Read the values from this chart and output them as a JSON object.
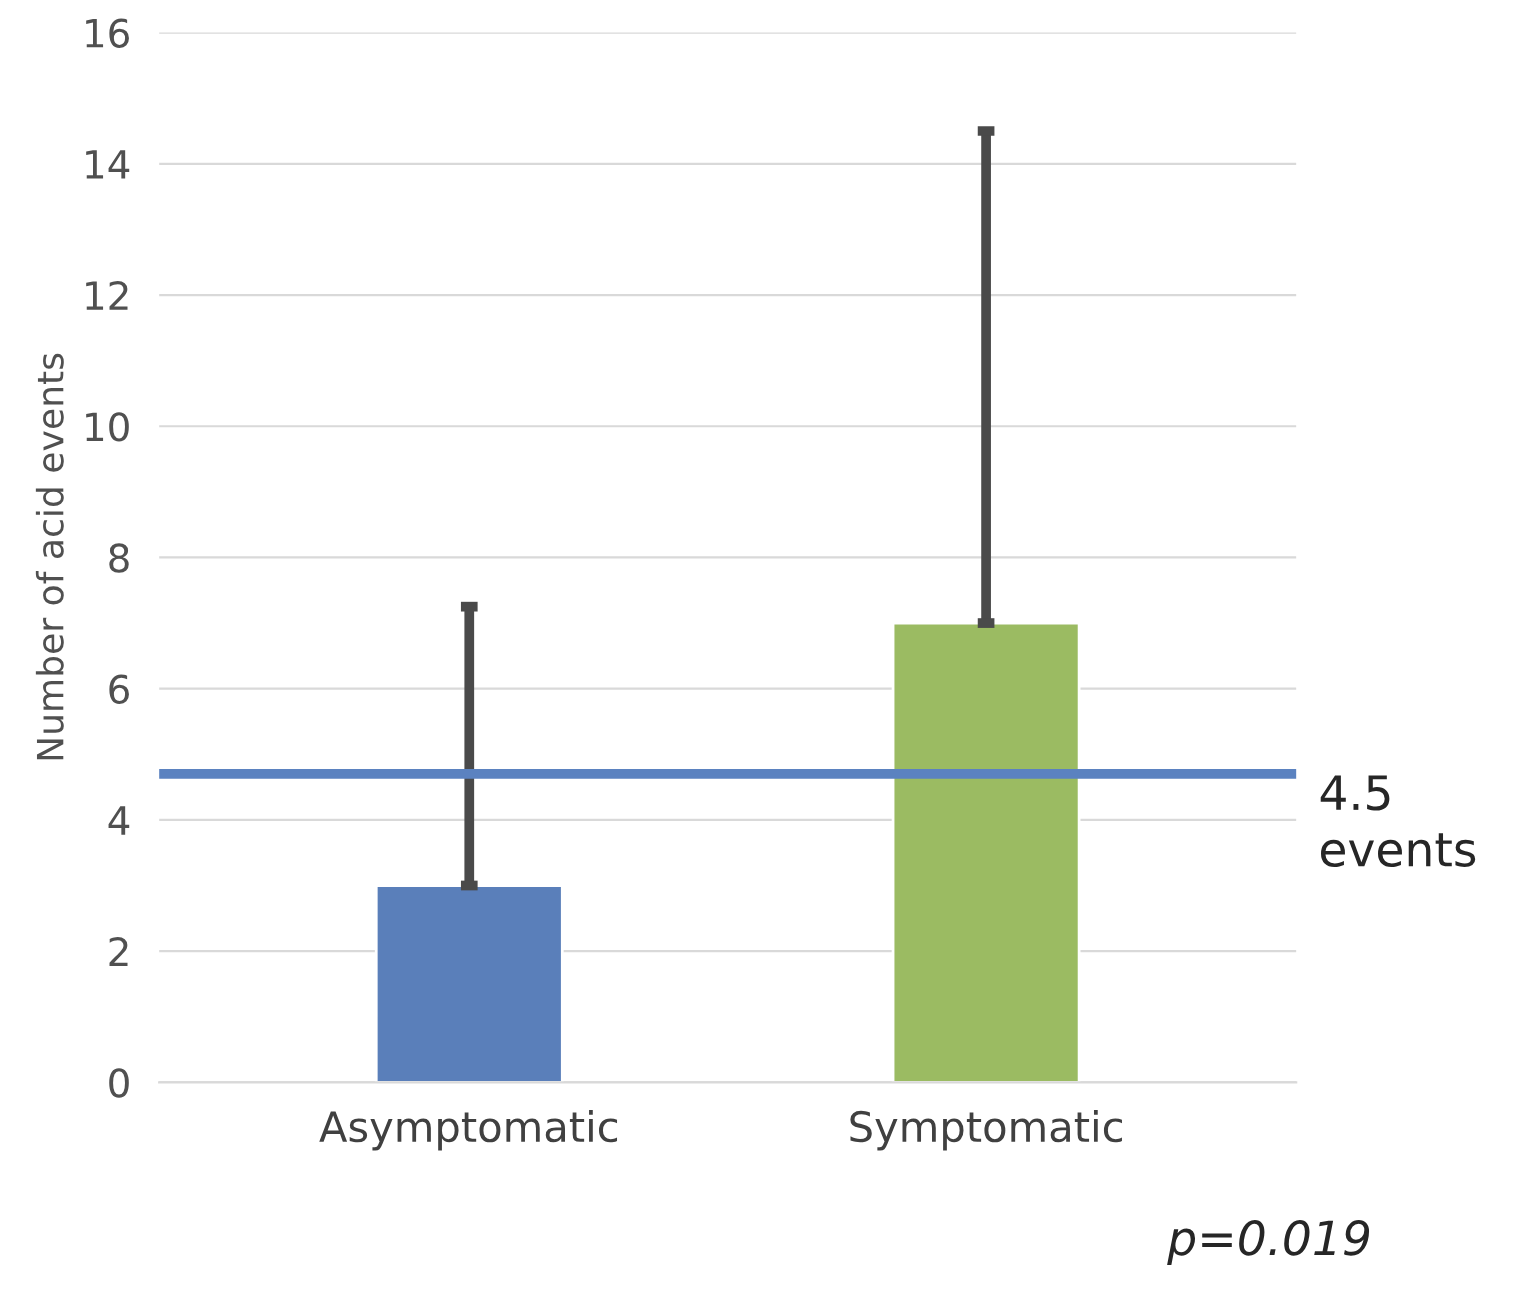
{
  "chart_data": {
    "type": "bar",
    "ylabel": "Number of acid events",
    "categories": [
      "Asymptomatic",
      "Symptomatic"
    ],
    "values": [
      3,
      7
    ],
    "colors": [
      "#5a7fba",
      "#9bbb62"
    ],
    "errors": [
      [
        3,
        7.25
      ],
      [
        7,
        14.5
      ]
    ],
    "ylim": [
      0,
      16
    ],
    "yticks": [
      0,
      2,
      4,
      6,
      8,
      10,
      12,
      14,
      16
    ],
    "grid": "y",
    "ref_lines": [
      {
        "axis": "y",
        "value": 4.7,
        "label": "4.5\nevents",
        "color": "#5b82c0",
        "line_style": "solid"
      }
    ],
    "annotations": [
      "p=0.019"
    ]
  }
}
